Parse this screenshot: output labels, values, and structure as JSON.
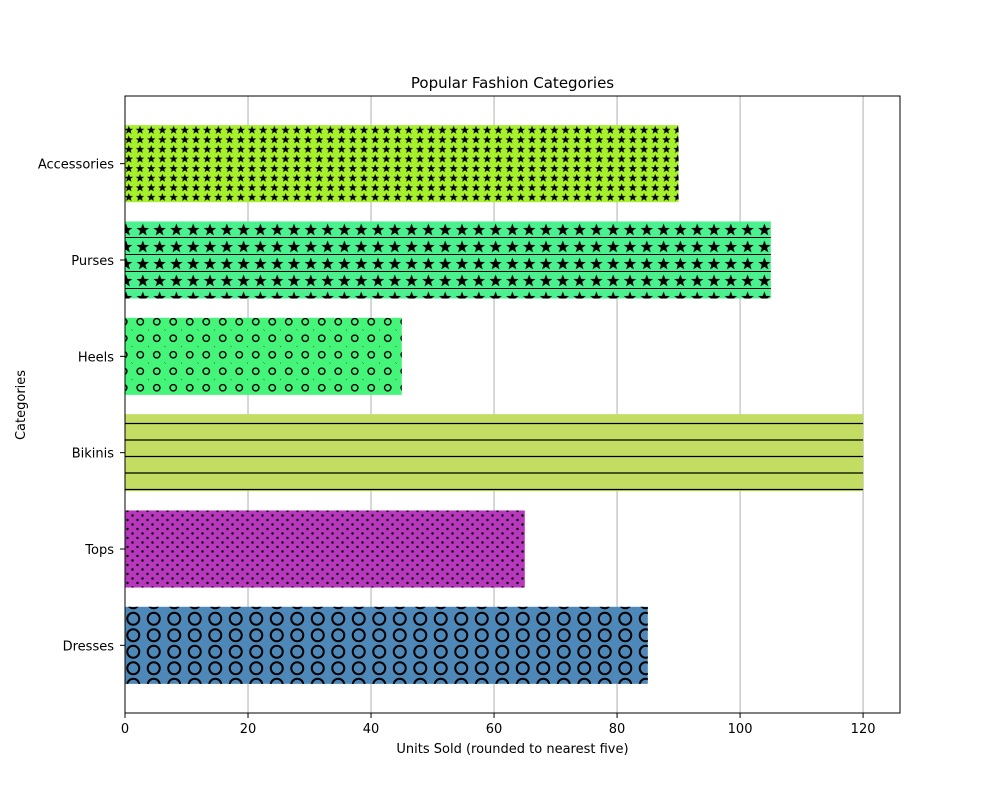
{
  "chart_data": {
    "type": "bar",
    "orientation": "horizontal",
    "title": "Popular Fashion Categories",
    "xlabel": "Units Sold (rounded to nearest five)",
    "ylabel": "Categories",
    "categories": [
      "Dresses",
      "Tops",
      "Bikinis",
      "Heels",
      "Purses",
      "Accessories"
    ],
    "values": [
      85,
      65,
      120,
      45,
      105,
      90
    ],
    "bar_colors": [
      "#4d88b8",
      "#b738bd",
      "#c2dd61",
      "#45f579",
      "#4bf08f",
      "#a6f02c"
    ],
    "bar_patterns": [
      "large-circles",
      "dots",
      "horizontal-lines",
      "circles-and-diagonals",
      "stars-and-horizontal-lines",
      "small-stars"
    ],
    "xlim": [
      0,
      126
    ],
    "xticks": [
      0,
      20,
      40,
      60,
      80,
      100,
      120
    ],
    "grid": "vertical"
  }
}
